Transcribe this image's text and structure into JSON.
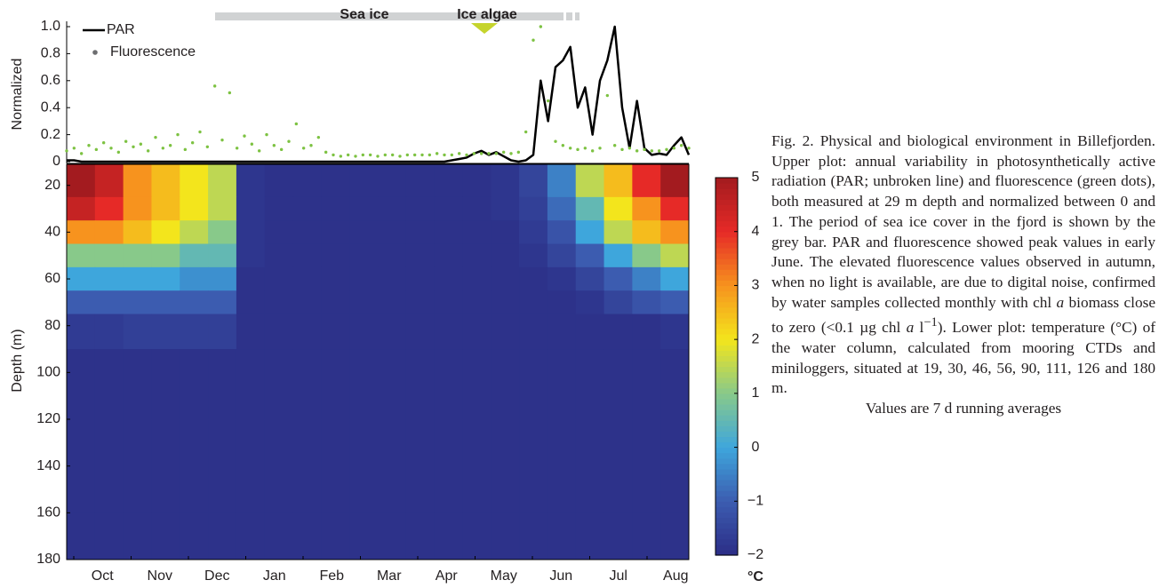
{
  "chart_data": [
    {
      "type": "line",
      "ylabel": "Normalized",
      "ylim": [
        0,
        1
      ],
      "yticks": [
        0,
        0.2,
        0.4,
        0.6,
        0.8,
        {
          "value": 1,
          "label": "1.0"
        }
      ],
      "annotations": [
        "Sea ice",
        "Ice algae"
      ],
      "series": [
        {
          "name": "PAR",
          "color": "#000000",
          "style": "line",
          "values": [
            0.01,
            0.01,
            0,
            0,
            0,
            0,
            0,
            0,
            0,
            0,
            0,
            0,
            0,
            0,
            0,
            0,
            0,
            0,
            0,
            0,
            0,
            0,
            0,
            0,
            0,
            0,
            0,
            0,
            0,
            0,
            0,
            0,
            0,
            0,
            0,
            0,
            0,
            0,
            0,
            0,
            0,
            0,
            0,
            0,
            0,
            0,
            0,
            0,
            0,
            0,
            0,
            0,
            0.01,
            0.02,
            0.03,
            0.06,
            0.08,
            0.05,
            0.07,
            0.04,
            0.01,
            0,
            0.01,
            0.05,
            0.6,
            0.3,
            0.7,
            0.75,
            0.85,
            0.4,
            0.55,
            0.2,
            0.6,
            0.75,
            1.0,
            0.4,
            0.1,
            0.45,
            0.1,
            0.05,
            0.06,
            0.05,
            0.12,
            0.18,
            0.05
          ]
        },
        {
          "name": "Fluorescence",
          "color": "#7dc242",
          "style": "dots",
          "values": [
            0.08,
            0.1,
            0.06,
            0.12,
            0.09,
            0.14,
            0.1,
            0.07,
            0.15,
            0.11,
            0.13,
            0.08,
            0.18,
            0.1,
            0.12,
            0.2,
            0.09,
            0.14,
            0.22,
            0.11,
            0.56,
            0.16,
            0.51,
            0.1,
            0.19,
            0.13,
            0.08,
            0.2,
            0.12,
            0.09,
            0.15,
            0.28,
            0.1,
            0.12,
            0.18,
            0.07,
            0.05,
            0.04,
            0.05,
            0.04,
            0.05,
            0.05,
            0.04,
            0.05,
            0.05,
            0.04,
            0.05,
            0.05,
            0.05,
            0.05,
            0.06,
            0.05,
            0.05,
            0.06,
            0.05,
            0.06,
            0.06,
            0.06,
            0.06,
            0.07,
            0.06,
            0.07,
            0.22,
            0.9,
            1.0,
            0.45,
            0.15,
            0.12,
            0.1,
            0.09,
            0.1,
            0.08,
            0.1,
            0.49,
            0.12,
            0.09,
            0.1,
            0.08,
            0.09,
            0.08,
            0.08,
            0.09,
            0.1,
            0.12,
            0.1
          ]
        }
      ]
    },
    {
      "type": "contour",
      "ylabel": "Depth (m)",
      "invert_y": true,
      "categories": [
        "Oct",
        "Nov",
        "Dec",
        "Jan",
        "Feb",
        "Mar",
        "Apr",
        "May",
        "Jun",
        "Jul",
        "Aug"
      ],
      "ylim": [
        11,
        180
      ],
      "yticks": [
        20,
        40,
        60,
        80,
        100,
        120,
        140,
        160,
        180
      ],
      "depths": [
        20,
        30,
        40,
        50,
        60,
        70,
        80,
        100,
        140,
        180
      ],
      "values": [
        [
          5,
          4.5,
          3,
          2.5,
          2,
          1.5,
          -1.8,
          -1.9,
          -1.9,
          -1.9,
          -1.9,
          -1.9,
          -1.9,
          -1.9,
          -1.9,
          -1.8,
          -1.5,
          -0.5,
          1.5,
          2.5,
          4,
          5
        ],
        [
          4.5,
          4,
          3,
          2.5,
          2,
          1.5,
          -1.8,
          -1.9,
          -1.9,
          -1.9,
          -1.9,
          -1.9,
          -1.9,
          -1.9,
          -1.9,
          -1.8,
          -1.6,
          -0.8,
          0.5,
          2,
          3,
          4
        ],
        [
          3,
          3,
          2.5,
          2,
          1.5,
          1,
          -1.8,
          -1.9,
          -1.9,
          -1.9,
          -1.9,
          -1.9,
          -1.9,
          -1.9,
          -1.9,
          -1.9,
          -1.7,
          -1.2,
          0,
          1.5,
          2.5,
          3
        ],
        [
          1,
          1,
          1,
          1,
          0.5,
          0.5,
          -1.8,
          -1.9,
          -1.9,
          -1.9,
          -1.9,
          -1.9,
          -1.9,
          -1.9,
          -1.9,
          -1.9,
          -1.8,
          -1.5,
          -1,
          0,
          1,
          1.5
        ],
        [
          0,
          0,
          0,
          0,
          -0.3,
          -0.3,
          -1.9,
          -1.9,
          -1.9,
          -1.9,
          -1.9,
          -1.9,
          -1.9,
          -1.9,
          -1.9,
          -1.9,
          -1.9,
          -1.8,
          -1.5,
          -1,
          -0.5,
          0
        ],
        [
          -1,
          -1,
          -1,
          -1,
          -1,
          -1,
          -1.9,
          -1.9,
          -1.9,
          -1.9,
          -1.9,
          -1.9,
          -1.9,
          -1.9,
          -1.9,
          -1.9,
          -1.9,
          -1.9,
          -1.8,
          -1.5,
          -1.2,
          -1
        ],
        [
          -1.7,
          -1.7,
          -1.6,
          -1.6,
          -1.6,
          -1.6,
          -1.9,
          -1.9,
          -1.9,
          -1.9,
          -1.9,
          -1.9,
          -1.9,
          -1.9,
          -1.9,
          -1.9,
          -1.9,
          -1.9,
          -1.9,
          -1.9,
          -1.9,
          -1.8
        ],
        [
          -1.9,
          -1.9,
          -1.9,
          -1.9,
          -1.9,
          -1.9,
          -1.9,
          -1.9,
          -1.9,
          -1.9,
          -1.9,
          -1.9,
          -1.9,
          -1.9,
          -1.9,
          -1.9,
          -1.9,
          -1.9,
          -1.9,
          -1.9,
          -1.9,
          -1.9
        ],
        [
          -1.9,
          -1.9,
          -1.9,
          -1.9,
          -1.9,
          -1.9,
          -1.9,
          -1.9,
          -1.9,
          -1.9,
          -1.9,
          -1.9,
          -1.9,
          -1.9,
          -1.9,
          -1.9,
          -1.9,
          -1.9,
          -1.9,
          -1.9,
          -1.9,
          -1.9
        ],
        [
          -1.9,
          -1.9,
          -1.9,
          -1.9,
          -1.9,
          -1.9,
          -1.9,
          -1.9,
          -1.9,
          -1.9,
          -1.9,
          -1.9,
          -1.9,
          -1.9,
          -1.9,
          -1.9,
          -1.9,
          -1.9,
          -1.9,
          -1.9,
          -1.9,
          -1.9
        ]
      ],
      "colorscale": [
        "#2b2d86",
        "#3c5cb0",
        "#3ea6dc",
        "#88c98a",
        "#f3e51c",
        "#f7931e",
        "#e62a27",
        "#a31b1f"
      ],
      "zlim": [
        -2,
        5
      ],
      "zticks": [
        {
          "value": -2,
          "label": "−2"
        },
        {
          "value": -1,
          "label": "−1"
        },
        0,
        1,
        2,
        3,
        4,
        5
      ],
      "zlabel": "°C"
    }
  ],
  "caption": {
    "segments": [
      "Fig. 2. Physical and biological environment in Billefjorden. Upper plot: annual variability in photosynthetically active radiation (PAR; unbroken line) and fluorescence (green dots), both measured at 29 m depth and normalized between 0 and 1. The period of sea ice cover in the fjord is shown by the grey bar. PAR and fluorescence showed peak values in early June. The elevated fluorescence values observed in autumn, when no light is available, are due to digital noise, confirmed by water samples collected monthly with chl ",
      "a",
      " biomass close to zero (<0.1 µg chl ",
      "a",
      " l",
      "−1",
      "). Lower plot: temperature (°C) of the water column, calculated from mooring CTDs and miniloggers, situated at 19, 30, 46, 56, 90, 111, 126 and 180 m.",
      "Values are 7 d running averages"
    ]
  }
}
